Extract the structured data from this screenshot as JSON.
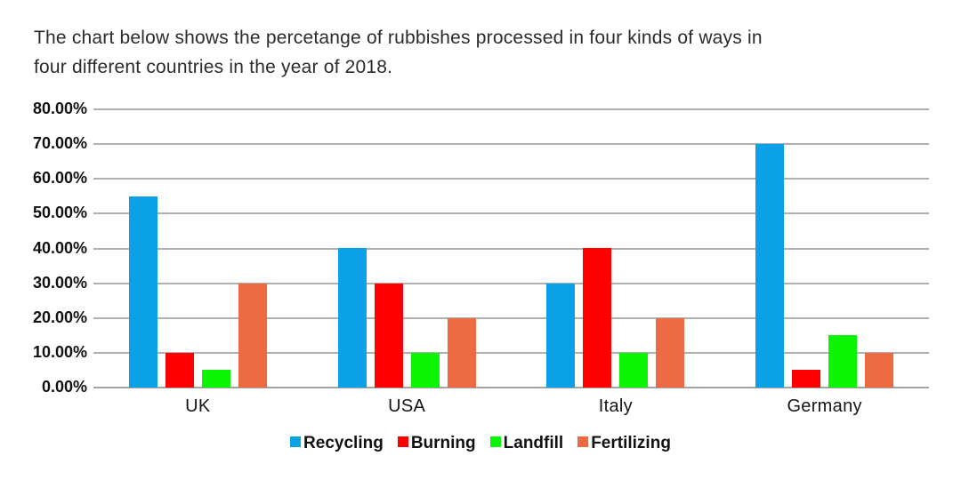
{
  "page": {
    "description": "The chart below shows the percetange of rubbishes processed in four kinds of ways in\nfour different countries in the year of 2018."
  },
  "chart_data": {
    "type": "bar",
    "title": "",
    "categories": [
      "UK",
      "USA",
      "Italy",
      "Germany"
    ],
    "series": [
      {
        "name": "Recycling",
        "color": "#0BA1E7",
        "values": [
          55,
          40,
          30,
          70
        ]
      },
      {
        "name": "Burning",
        "color": "#FE0000",
        "values": [
          10,
          30,
          40,
          5
        ]
      },
      {
        "name": "Landfill",
        "color": "#0BF502",
        "values": [
          5,
          10,
          10,
          15
        ]
      },
      {
        "name": "Fertilizing",
        "color": "#EC6B43",
        "values": [
          30,
          20,
          20,
          10
        ]
      }
    ],
    "ylim": [
      0,
      80
    ],
    "ytick_step": 10,
    "yticks": [
      "80.00%",
      "70.00%",
      "60.00%",
      "50.00%",
      "40.00%",
      "30.00%",
      "20.00%",
      "10.00%",
      "0.00%"
    ],
    "xlabel": "",
    "ylabel": "",
    "grid": true,
    "gridline_color": "#B0B0B0",
    "legend_position": "bottom",
    "background_color": "#FFFFFF",
    "text_color": "#111111"
  }
}
